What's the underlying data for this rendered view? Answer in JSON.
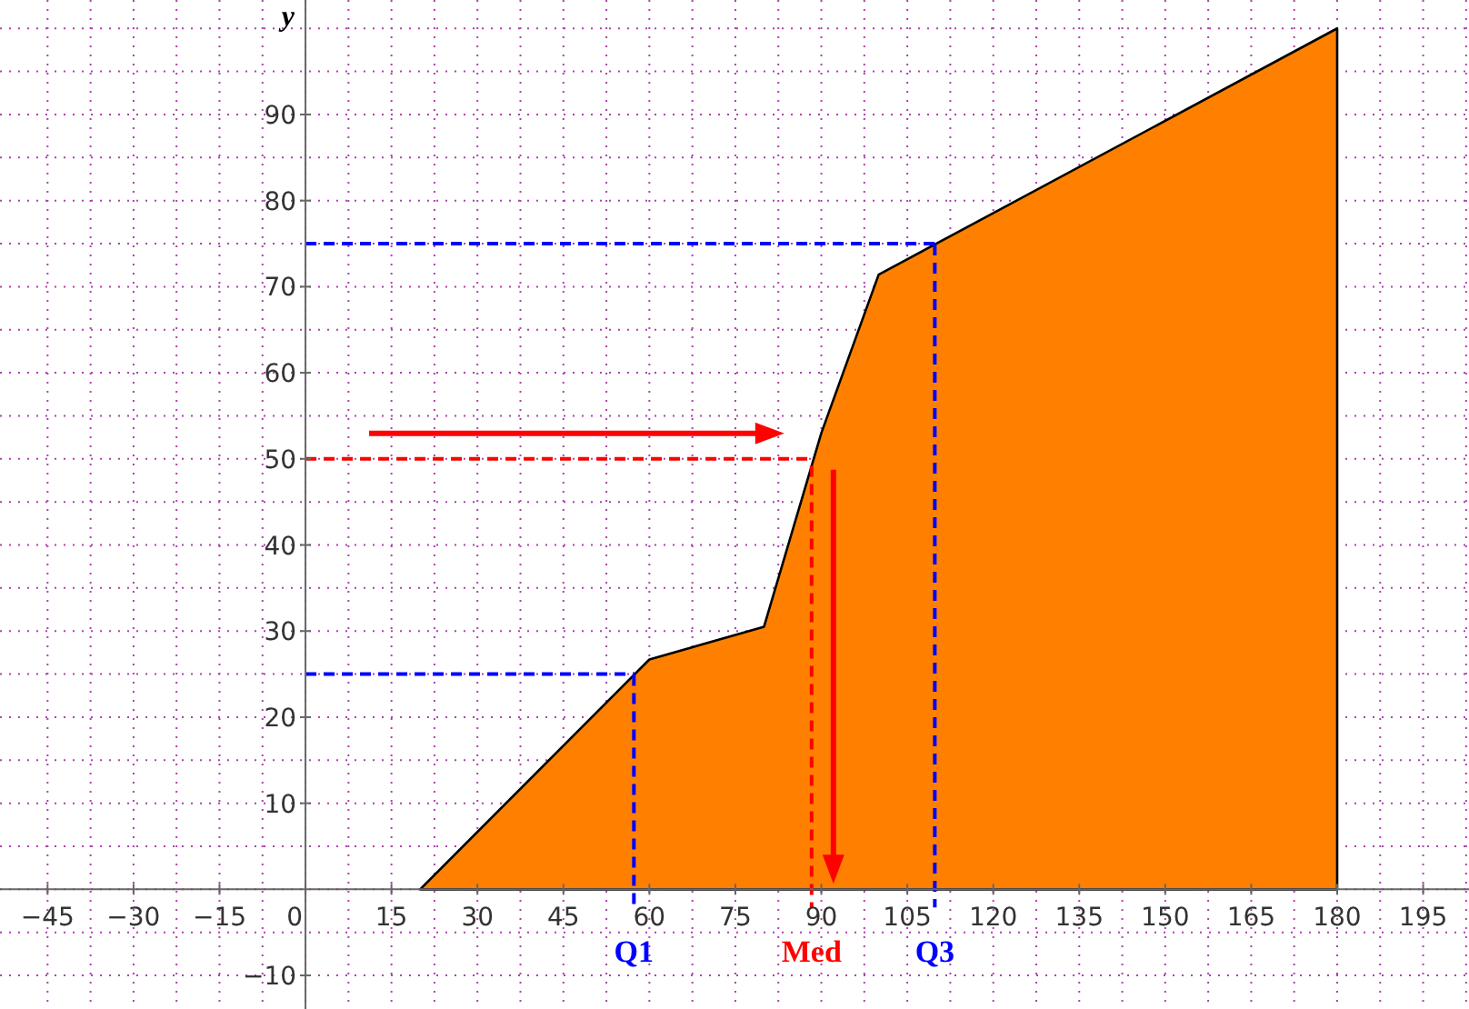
{
  "chart_data": {
    "type": "area",
    "ylabel": "y",
    "x": [
      20,
      60,
      80,
      90,
      100,
      180
    ],
    "series": [
      {
        "color": "#ff8000",
        "values": [
          0,
          26.7,
          30.5,
          53,
          71.4,
          100
        ]
      }
    ],
    "xlim": [
      -53.3,
      203
    ],
    "ylim": [
      -13.9,
      103.3
    ],
    "xticks": [
      -45,
      {
        "value": -37.5,
        "label": null
      },
      -30,
      {
        "value": -22.5,
        "label": null
      },
      -15,
      {
        "value": -7.5,
        "label": null
      },
      0,
      {
        "value": 7.5,
        "label": null
      },
      15,
      {
        "value": 22.5,
        "label": null
      },
      30,
      {
        "value": 37.5,
        "label": null
      },
      45,
      {
        "value": 52.5,
        "label": null
      },
      60,
      {
        "value": 67.5,
        "label": null
      },
      75,
      {
        "value": 82.5,
        "label": null
      },
      90,
      {
        "value": 97.5,
        "label": null
      },
      105,
      {
        "value": 112.5,
        "label": null
      },
      120,
      {
        "value": 127.5,
        "label": null
      },
      135,
      {
        "value": 142.5,
        "label": null
      },
      150,
      {
        "value": 157.5,
        "label": null
      },
      165,
      {
        "value": 172.5,
        "label": null
      },
      180,
      {
        "value": 187.5,
        "label": null
      },
      195,
      {
        "value": 202.5,
        "label": null
      }
    ],
    "yticks": [
      {
        "value": -5,
        "label": null
      },
      -10,
      {
        "value": 0,
        "label": null
      },
      {
        "value": 5,
        "label": null
      },
      10,
      {
        "value": 15,
        "label": null
      },
      20,
      {
        "value": 25,
        "label": null
      },
      30,
      {
        "value": 35,
        "label": null
      },
      40,
      {
        "value": 45,
        "label": null
      },
      50,
      {
        "value": 55,
        "label": null
      },
      60,
      {
        "value": 65,
        "label": null
      },
      70,
      {
        "value": 75,
        "label": null
      },
      80,
      {
        "value": 85,
        "label": null
      },
      90,
      {
        "value": 95,
        "label": null
      },
      {
        "value": 100,
        "label": null
      }
    ],
    "grid": true,
    "ref_lines": [
      {
        "axis": "y",
        "value": 25,
        "color": "#0000ff",
        "line_style": "dashed"
      },
      {
        "axis": "x",
        "value": 57.3,
        "label": "Q1",
        "color": "#0000ff",
        "line_style": "dashed"
      },
      {
        "axis": "y",
        "value": 50,
        "color": "#ff0000",
        "line_style": "dashed"
      },
      {
        "axis": "x",
        "value": 88.3,
        "label": "Med",
        "color": "#ff0000",
        "line_style": "dashed"
      },
      {
        "axis": "y",
        "value": 75,
        "color": "#0000ff",
        "line_style": "dashed"
      },
      {
        "axis": "x",
        "value": 109.8,
        "label": "Q3",
        "color": "#0000ff",
        "line_style": "dashed"
      }
    ]
  }
}
